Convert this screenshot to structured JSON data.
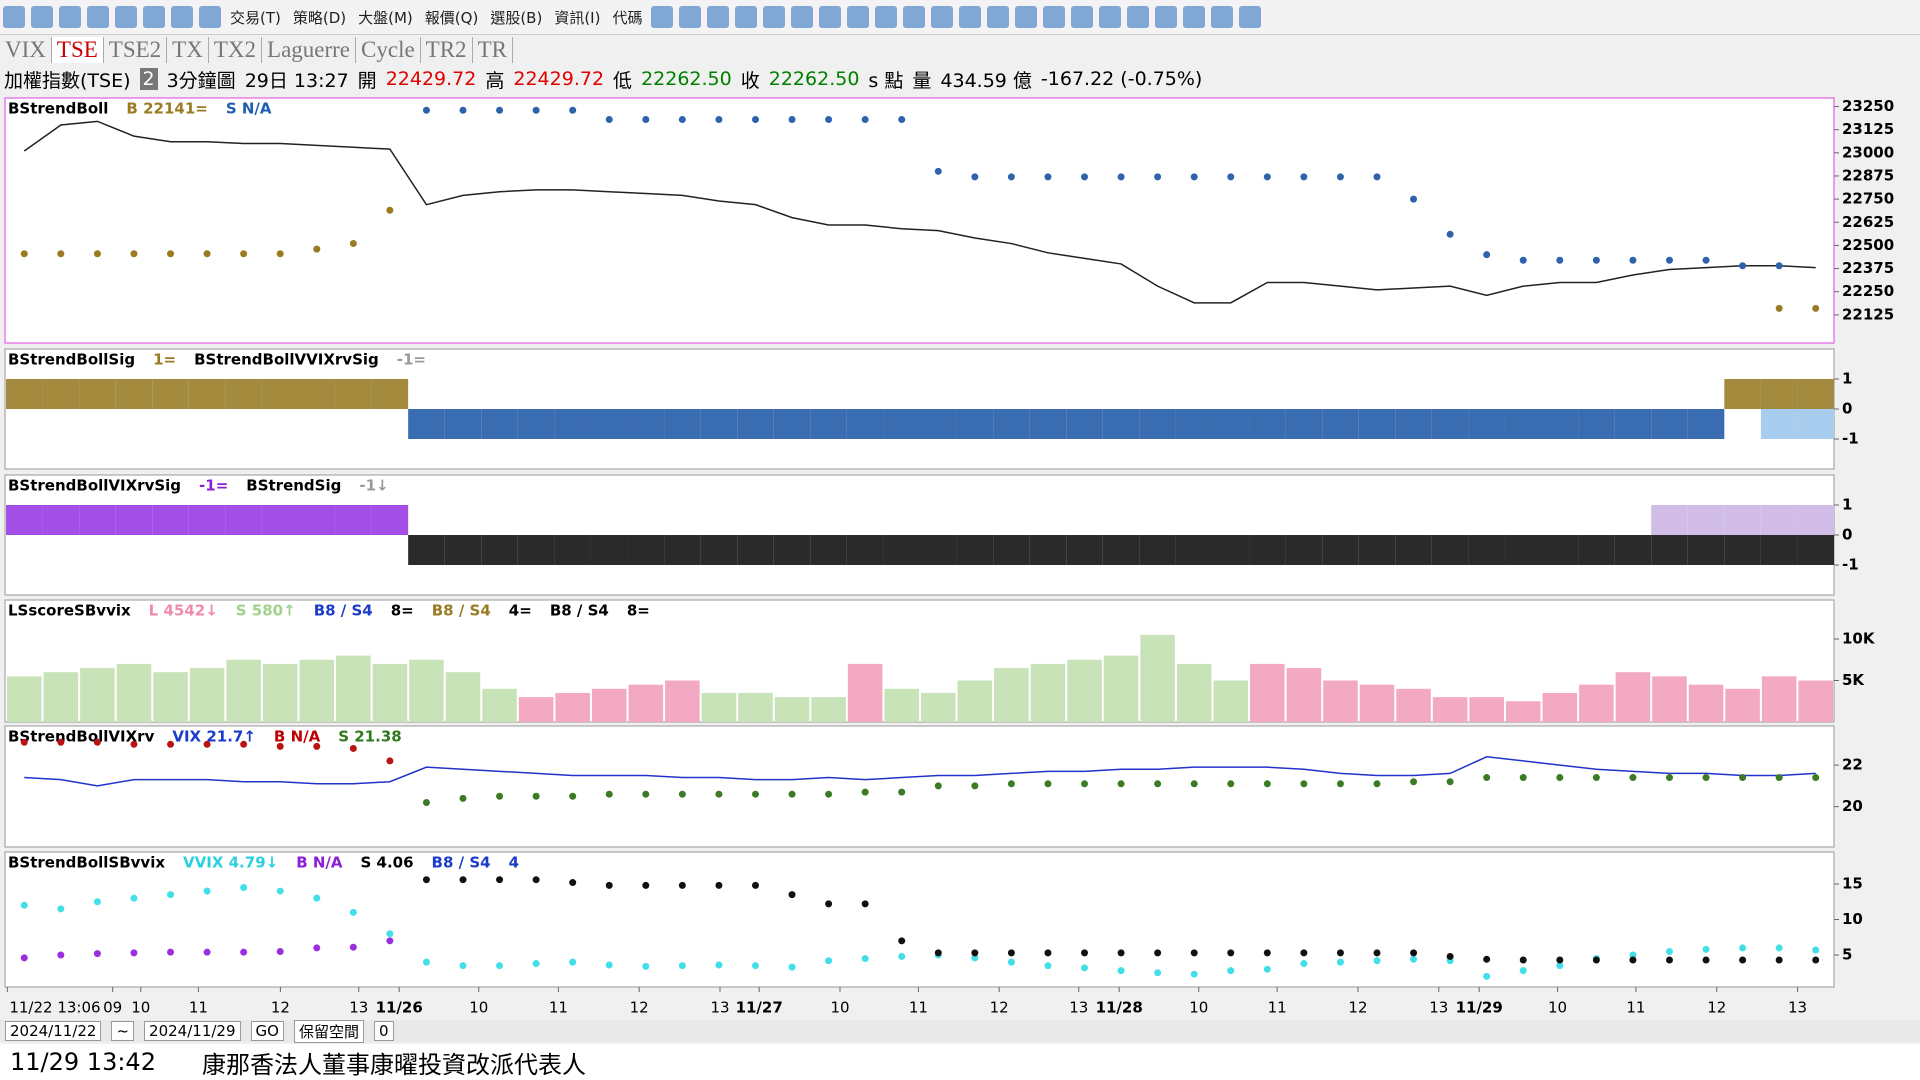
{
  "toolbar": {
    "menu": [
      "交易(T)",
      "策略(D)",
      "大盤(M)",
      "報價(Q)",
      "選股(B)",
      "資訊(I)",
      "代碼"
    ]
  },
  "tabs": {
    "items": [
      "VIX",
      "TSE",
      "TSE2",
      "TX",
      "TX2",
      "Laguerre",
      "Cycle",
      "TR2",
      "TR"
    ],
    "active": 1
  },
  "info": {
    "items": [
      {
        "text": "加權指數(TSE)",
        "color": "#000"
      },
      {
        "text": "2",
        "color": "#fff"
      },
      {
        "text": "3分鐘圖",
        "color": "#000"
      },
      {
        "text": "29日 13:27",
        "color": "#000"
      },
      {
        "text": "開",
        "color": "#000"
      },
      {
        "text": "22429.72",
        "color": "#e00000"
      },
      {
        "text": "高",
        "color": "#000"
      },
      {
        "text": "22429.72",
        "color": "#e00000"
      },
      {
        "text": "低",
        "color": "#000"
      },
      {
        "text": "22262.50",
        "color": "#008000"
      },
      {
        "text": "收",
        "color": "#000"
      },
      {
        "text": "22262.50",
        "color": "#008000"
      },
      {
        "text": "s 點",
        "color": "#000"
      },
      {
        "text": "量",
        "color": "#000"
      },
      {
        "text": "434.59 億",
        "color": "#000"
      },
      {
        "text": "-167.22 (-0.75%)",
        "color": "#000"
      }
    ]
  },
  "chart_data": [
    {
      "type": "line",
      "legend": [
        {
          "text": "BStrendBoll",
          "color": "#000"
        },
        {
          "text": "B 22141=",
          "color": "#9a7b22"
        },
        {
          "text": "S N/A",
          "color": "#1f5fb0"
        }
      ],
      "ylim": [
        21973,
        23296
      ],
      "yticks": [
        23250,
        23125,
        23000,
        22875,
        22750,
        22625,
        22500,
        22375,
        22250,
        22125
      ],
      "series": [
        {
          "name": "price",
          "color": "#222",
          "dots": false,
          "values": [
            23010,
            23150,
            23170,
            23090,
            23060,
            23060,
            23050,
            23050,
            23040,
            23030,
            23020,
            22720,
            22770,
            22790,
            22800,
            22800,
            22790,
            22780,
            22770,
            22740,
            22720,
            22650,
            22610,
            22610,
            22590,
            22580,
            22540,
            22510,
            22460,
            22430,
            22400,
            22280,
            22190,
            22190,
            22300,
            22300,
            22280,
            22260,
            22270,
            22280,
            22230,
            22280,
            22300,
            22300,
            22340,
            22370,
            22380,
            22390,
            22390,
            22380
          ]
        },
        {
          "name": "S",
          "color": "#2f62aa",
          "dots": true,
          "values": [
            null,
            null,
            null,
            null,
            null,
            null,
            null,
            null,
            null,
            null,
            null,
            23230,
            23230,
            23230,
            23230,
            23230,
            23180,
            23180,
            23180,
            23180,
            23180,
            23180,
            23180,
            23180,
            23180,
            22900,
            22870,
            22870,
            22870,
            22870,
            22870,
            22870,
            22870,
            22870,
            22870,
            22870,
            22870,
            22870,
            22750,
            22560,
            22450,
            22420,
            22420,
            22420,
            22420,
            22420,
            22420,
            22390,
            22390,
            null
          ]
        },
        {
          "name": "B",
          "color": "#9a7b22",
          "dots": true,
          "values": [
            22455,
            22455,
            22455,
            22455,
            22455,
            22455,
            22455,
            22455,
            22480,
            22510,
            22690,
            null,
            null,
            null,
            null,
            null,
            null,
            null,
            null,
            null,
            null,
            null,
            null,
            null,
            null,
            null,
            null,
            null,
            null,
            null,
            null,
            null,
            null,
            null,
            null,
            null,
            null,
            null,
            null,
            null,
            null,
            null,
            null,
            null,
            null,
            null,
            null,
            null,
            22160,
            22160
          ]
        }
      ]
    },
    {
      "type": "signal",
      "legend": [
        {
          "text": "BStrendBollSig",
          "color": "#000"
        },
        {
          "text": "1=",
          "color": "#9a7b22"
        },
        {
          "text": "BStrendBollVVIXrvSig",
          "color": "#000"
        },
        {
          "text": "-1=",
          "color": "#999"
        }
      ],
      "ylim": [
        -2,
        2
      ],
      "yticks": [
        1,
        0,
        -1
      ],
      "pos_color": "#a48a3c",
      "neg_color": "#3a6cb2",
      "values": [
        1,
        1,
        1,
        1,
        1,
        1,
        1,
        1,
        1,
        1,
        1,
        -1,
        -1,
        -1,
        -1,
        -1,
        -1,
        -1,
        -1,
        -1,
        -1,
        -1,
        -1,
        -1,
        -1,
        -1,
        -1,
        -1,
        -1,
        -1,
        -1,
        -1,
        -1,
        -1,
        -1,
        -1,
        -1,
        -1,
        -1,
        -1,
        -1,
        -1,
        -1,
        -1,
        -1,
        -1,
        -1,
        1,
        1,
        1
      ],
      "overlay": {
        "color": "#a9cdee",
        "values": [
          null,
          null,
          null,
          null,
          null,
          null,
          null,
          null,
          null,
          null,
          null,
          null,
          null,
          null,
          null,
          null,
          null,
          null,
          null,
          null,
          null,
          null,
          null,
          null,
          null,
          null,
          null,
          null,
          null,
          null,
          null,
          null,
          null,
          null,
          null,
          null,
          null,
          null,
          null,
          null,
          null,
          null,
          null,
          null,
          null,
          null,
          null,
          null,
          -1,
          -1
        ]
      }
    },
    {
      "type": "signal",
      "legend": [
        {
          "text": "BStrendBollVIXrvSig",
          "color": "#000"
        },
        {
          "text": "-1=",
          "color": "#8b1fd6"
        },
        {
          "text": "BStrendSig",
          "color": "#000"
        },
        {
          "text": "-1↓",
          "color": "#999"
        }
      ],
      "ylim": [
        -2,
        2
      ],
      "yticks": [
        1,
        0,
        -1
      ],
      "pos_color": "#a44ee8",
      "neg_color": "#2a2a2a",
      "values": [
        1,
        1,
        1,
        1,
        1,
        1,
        1,
        1,
        1,
        1,
        1,
        -1,
        -1,
        -1,
        -1,
        -1,
        -1,
        -1,
        -1,
        -1,
        -1,
        -1,
        -1,
        -1,
        -1,
        -1,
        -1,
        -1,
        -1,
        -1,
        -1,
        -1,
        -1,
        -1,
        -1,
        -1,
        -1,
        -1,
        -1,
        -1,
        -1,
        -1,
        -1,
        -1,
        -1,
        -1,
        -1,
        -1,
        -1,
        -1
      ],
      "overlay": {
        "color": "#d2bde8",
        "values": [
          null,
          null,
          null,
          null,
          null,
          null,
          null,
          null,
          null,
          null,
          null,
          null,
          null,
          null,
          null,
          null,
          null,
          null,
          null,
          null,
          null,
          null,
          null,
          null,
          null,
          null,
          null,
          null,
          null,
          null,
          null,
          null,
          null,
          null,
          null,
          null,
          null,
          null,
          null,
          null,
          null,
          null,
          null,
          null,
          null,
          1,
          1,
          1,
          1,
          1
        ]
      }
    },
    {
      "type": "bar",
      "legend": [
        {
          "text": "LSscoreSBvvix",
          "color": "#000"
        },
        {
          "text": "L 4542↓",
          "color": "#f08bb0"
        },
        {
          "text": "S 580↑",
          "color": "#9fd38a"
        },
        {
          "text": "B8 / S4",
          "color": "#1c3cc8"
        },
        {
          "text": "8=",
          "color": "#000"
        },
        {
          "text": "B8 / S4",
          "color": "#9a7b22"
        },
        {
          "text": "4=",
          "color": "#000"
        },
        {
          "text": "B8 / S4",
          "color": "#000"
        },
        {
          "text": "8=",
          "color": "#000"
        }
      ],
      "ylim": [
        0,
        14700
      ],
      "yticks": [
        {
          "value": 10000,
          "label": "10K"
        },
        {
          "value": 5000,
          "label": "5K"
        }
      ],
      "values": [
        5500,
        6000,
        6500,
        7000,
        6000,
        6500,
        7500,
        7000,
        7500,
        8000,
        7000,
        7500,
        6000,
        4000,
        3000,
        3500,
        4000,
        4500,
        5000,
        3500,
        3500,
        3000,
        3000,
        7000,
        4000,
        3500,
        5000,
        6500,
        7000,
        7500,
        8000,
        10500,
        7000,
        5000,
        7000,
        6500,
        5000,
        4500,
        4000,
        3000,
        3000,
        2500,
        3500,
        4500,
        6000,
        5500,
        4500,
        4000,
        5500,
        5000
      ],
      "colors": [
        "#c9e3b8",
        "#c9e3b8",
        "#c9e3b8",
        "#c9e3b8",
        "#c9e3b8",
        "#c9e3b8",
        "#c9e3b8",
        "#c9e3b8",
        "#c9e3b8",
        "#c9e3b8",
        "#c9e3b8",
        "#c9e3b8",
        "#c9e3b8",
        "#c9e3b8",
        "#f4a9c2",
        "#f4a9c2",
        "#f4a9c2",
        "#f4a9c2",
        "#f4a9c2",
        "#c9e3b8",
        "#c9e3b8",
        "#c9e3b8",
        "#c9e3b8",
        "#f4a9c2",
        "#c9e3b8",
        "#c9e3b8",
        "#c9e3b8",
        "#c9e3b8",
        "#c9e3b8",
        "#c9e3b8",
        "#c9e3b8",
        "#c9e3b8",
        "#c9e3b8",
        "#c9e3b8",
        "#f4a9c2",
        "#f4a9c2",
        "#f4a9c2",
        "#f4a9c2",
        "#f4a9c2",
        "#f4a9c2",
        "#f4a9c2",
        "#f4a9c2",
        "#f4a9c2",
        "#f4a9c2",
        "#f4a9c2",
        "#f4a9c2",
        "#f4a9c2",
        "#f4a9c2",
        "#f4a9c2",
        "#f4a9c2"
      ]
    },
    {
      "type": "line",
      "legend": [
        {
          "text": "BStrendBollVIXrv",
          "color": "#000"
        },
        {
          "text": "VIX 21.7↑",
          "color": "#1c3cc8"
        },
        {
          "text": "B N/A",
          "color": "#c00000"
        },
        {
          "text": "S 21.38",
          "color": "#2f7a1f"
        }
      ],
      "ylim": [
        18.06,
        23.88
      ],
      "yticks": [
        22,
        20
      ],
      "series": [
        {
          "name": "VIX",
          "color": "#2233cc",
          "dots": false,
          "values": [
            21.4,
            21.3,
            21.0,
            21.3,
            21.3,
            21.3,
            21.2,
            21.2,
            21.1,
            21.1,
            21.2,
            21.9,
            21.8,
            21.7,
            21.6,
            21.5,
            21.5,
            21.5,
            21.4,
            21.4,
            21.3,
            21.3,
            21.4,
            21.3,
            21.4,
            21.5,
            21.5,
            21.6,
            21.7,
            21.7,
            21.8,
            21.8,
            21.9,
            21.9,
            21.9,
            21.8,
            21.6,
            21.5,
            21.5,
            21.6,
            22.4,
            22.2,
            22.0,
            21.8,
            21.7,
            21.6,
            21.6,
            21.5,
            21.5,
            21.6
          ]
        },
        {
          "name": "B",
          "color": "#b81414",
          "dots": true,
          "values": [
            23.1,
            23.1,
            23.1,
            23.0,
            23.0,
            23.0,
            23.0,
            22.9,
            22.9,
            22.8,
            22.2,
            null,
            null,
            null,
            null,
            null,
            null,
            null,
            null,
            null,
            null,
            null,
            null,
            null,
            null,
            null,
            null,
            null,
            null,
            null,
            null,
            null,
            null,
            null,
            null,
            null,
            null,
            null,
            null,
            null,
            null,
            null,
            null,
            null,
            null,
            null,
            null,
            null,
            null,
            null
          ]
        },
        {
          "name": "S",
          "color": "#3d7a26",
          "dots": true,
          "values": [
            null,
            null,
            null,
            null,
            null,
            null,
            null,
            null,
            null,
            null,
            null,
            20.2,
            20.4,
            20.5,
            20.5,
            20.5,
            20.6,
            20.6,
            20.6,
            20.6,
            20.6,
            20.6,
            20.6,
            20.7,
            20.7,
            21.0,
            21.0,
            21.1,
            21.1,
            21.1,
            21.1,
            21.1,
            21.1,
            21.1,
            21.1,
            21.1,
            21.1,
            21.1,
            21.2,
            21.2,
            21.4,
            21.4,
            21.4,
            21.4,
            21.4,
            21.4,
            21.4,
            21.4,
            21.4,
            21.4
          ]
        }
      ]
    },
    {
      "type": "line",
      "legend": [
        {
          "text": "BStrendBollSBvvix",
          "color": "#000"
        },
        {
          "text": "VVIX 4.79↓",
          "color": "#2ad0e0"
        },
        {
          "text": "B N/A",
          "color": "#8b1fd6"
        },
        {
          "text": "S 4.06",
          "color": "#000"
        },
        {
          "text": "B8 / S4",
          "color": "#1c3cc8"
        },
        {
          "text": "4",
          "color": "#1c3cc8"
        }
      ],
      "ylim": [
        0.5,
        19.5
      ],
      "yticks": [
        15,
        10,
        5
      ],
      "series": [
        {
          "name": "VVIX",
          "color": "#43dfe8",
          "dots": true,
          "values": [
            12,
            11.5,
            12.5,
            13,
            13.5,
            14,
            14.5,
            14,
            13,
            11,
            8,
            4,
            3.5,
            3.5,
            3.8,
            4,
            3.6,
            3.4,
            3.5,
            3.6,
            3.5,
            3.3,
            4.2,
            4.5,
            4.8,
            5.0,
            4.6,
            4.0,
            3.5,
            3.2,
            2.8,
            2.5,
            2.3,
            2.8,
            3.0,
            3.8,
            4.0,
            4.2,
            4.4,
            4.2,
            2.0,
            2.8,
            3.5,
            4.5,
            5.0,
            5.5,
            5.8,
            6.0,
            6.0,
            5.7
          ]
        },
        {
          "name": "B",
          "color": "#9b2fe0",
          "dots": true,
          "values": [
            4.6,
            5.0,
            5.2,
            5.3,
            5.4,
            5.4,
            5.4,
            5.5,
            6.0,
            6.1,
            7.0,
            null,
            null,
            null,
            null,
            null,
            null,
            null,
            null,
            null,
            null,
            null,
            null,
            null,
            null,
            null,
            null,
            null,
            null,
            null,
            null,
            null,
            null,
            null,
            null,
            null,
            null,
            null,
            null,
            null,
            null,
            null,
            null,
            null,
            null,
            null,
            null,
            null,
            null,
            null
          ]
        },
        {
          "name": "S",
          "color": "#111",
          "dots": true,
          "values": [
            null,
            null,
            null,
            null,
            null,
            null,
            null,
            null,
            null,
            null,
            null,
            15.6,
            15.6,
            15.6,
            15.6,
            15.2,
            14.8,
            14.8,
            14.8,
            14.8,
            14.8,
            13.5,
            12.2,
            12.2,
            7.0,
            5.3,
            5.3,
            5.3,
            5.3,
            5.3,
            5.3,
            5.3,
            5.3,
            5.3,
            5.3,
            5.3,
            5.3,
            5.3,
            5.3,
            4.8,
            4.4,
            4.3,
            4.3,
            4.3,
            4.3,
            4.3,
            4.3,
            4.3,
            4.3,
            4.3
          ]
        }
      ]
    }
  ],
  "xaxis": {
    "labels": [
      "11/22 13:06",
      "09",
      "10",
      "11",
      "12",
      "13",
      "11/26",
      "10",
      "11",
      "12",
      "13",
      "11/27",
      "10",
      "11",
      "12",
      "13",
      "11/28",
      "10",
      "11",
      "12",
      "13",
      "11/29",
      "10",
      "11",
      "12",
      "13"
    ]
  },
  "controls": [
    "2024/11/22",
    "~",
    "2024/11/29",
    "GO",
    "保留空間",
    "0"
  ],
  "status": {
    "time": "11/29 13:42",
    "message": "康那香法人董事康曜投資改派代表人"
  }
}
